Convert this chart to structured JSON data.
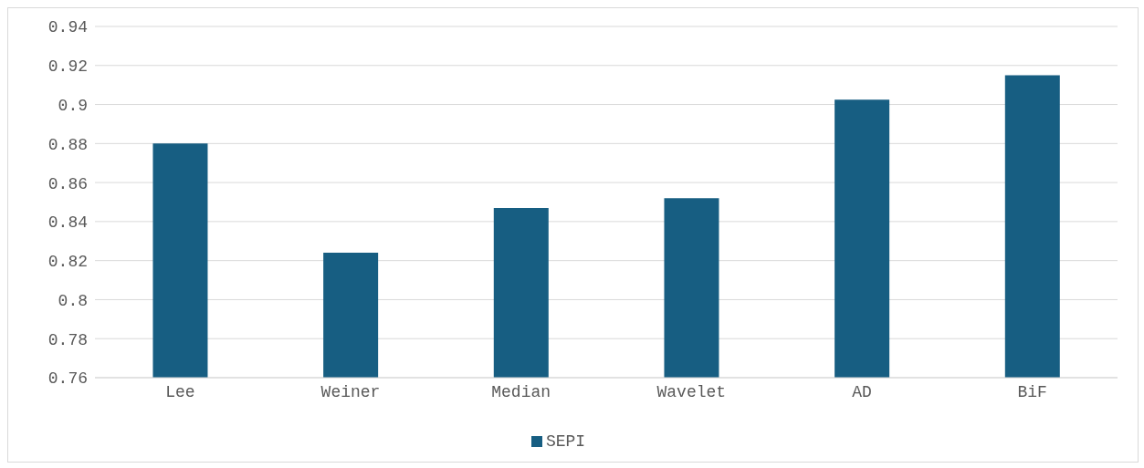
{
  "chart_data": {
    "type": "bar",
    "categories": [
      "Lee",
      "Weiner",
      "Median",
      "Wavelet",
      "AD",
      "BiF"
    ],
    "series": [
      {
        "name": "SEPI",
        "color": "#175e82",
        "values": [
          0.88,
          0.824,
          0.847,
          0.852,
          0.9025,
          0.915
        ]
      }
    ],
    "ylim": [
      0.76,
      0.94
    ],
    "yticks": [
      0.76,
      0.78,
      0.8,
      0.82,
      0.84,
      0.86,
      0.88,
      0.9,
      0.92,
      0.94
    ],
    "grid": "y",
    "legend": "bottom"
  }
}
